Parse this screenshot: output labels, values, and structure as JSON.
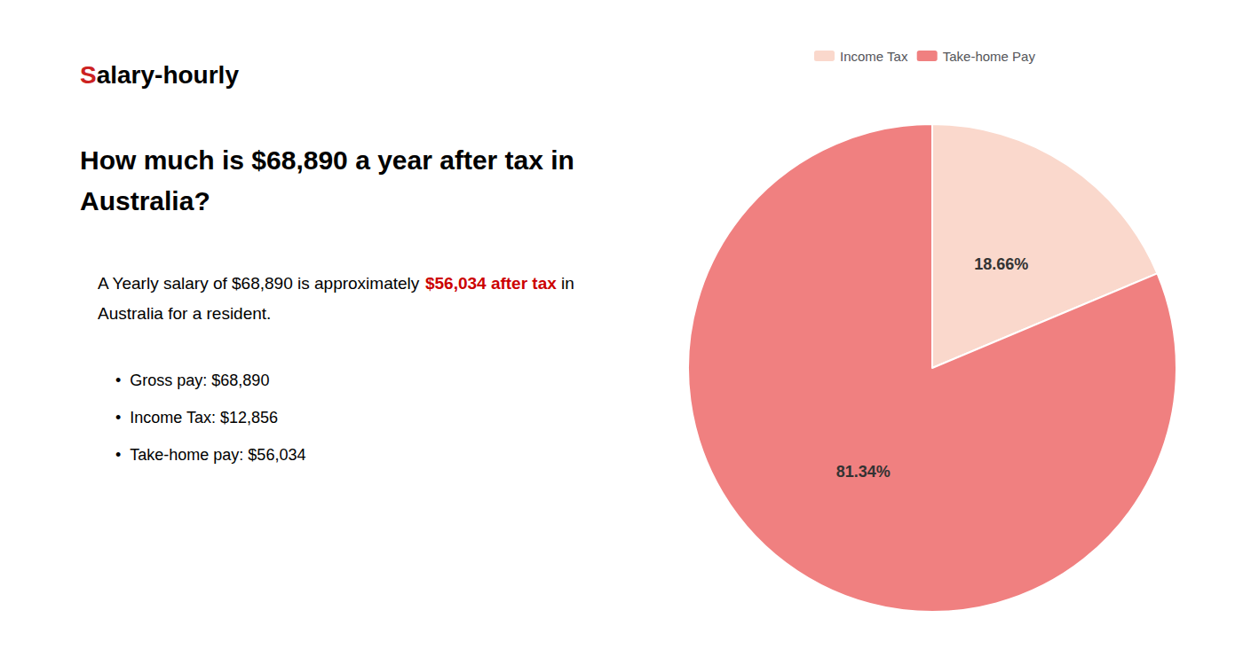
{
  "chart_data": {
    "type": "pie",
    "title": "How much is $68,890 a year after tax in\nAustralia?",
    "annotations": [
      [
        {
          "text": "S",
          "color": "#cc2222"
        },
        {
          "text": "alary-hourly"
        }
      ],
      [
        {
          "text": "A Yearly salary of $68,890 is approximately "
        },
        {
          "text": "$56,034 after tax",
          "color": "#cc0000"
        },
        {
          "text": " in"
        }
      ],
      [
        {
          "text": "Australia for a resident."
        }
      ],
      [
        {
          "text": "•"
        },
        {
          "text": "Gross pay: $68,890"
        }
      ],
      [
        {
          "text": "•"
        },
        {
          "text": "Income Tax: $12,856"
        }
      ],
      [
        {
          "text": "•"
        },
        {
          "text": "Take-home pay: $56,034"
        }
      ]
    ],
    "categories": [
      "Income Tax",
      "Take-home Pay"
    ],
    "values": [
      18.66,
      81.34
    ],
    "value_labels": [
      "18.66%",
      "81.34%"
    ],
    "colors": [
      "#fad8cc",
      "#f08080"
    ],
    "data_labels": true,
    "legend": "top"
  }
}
